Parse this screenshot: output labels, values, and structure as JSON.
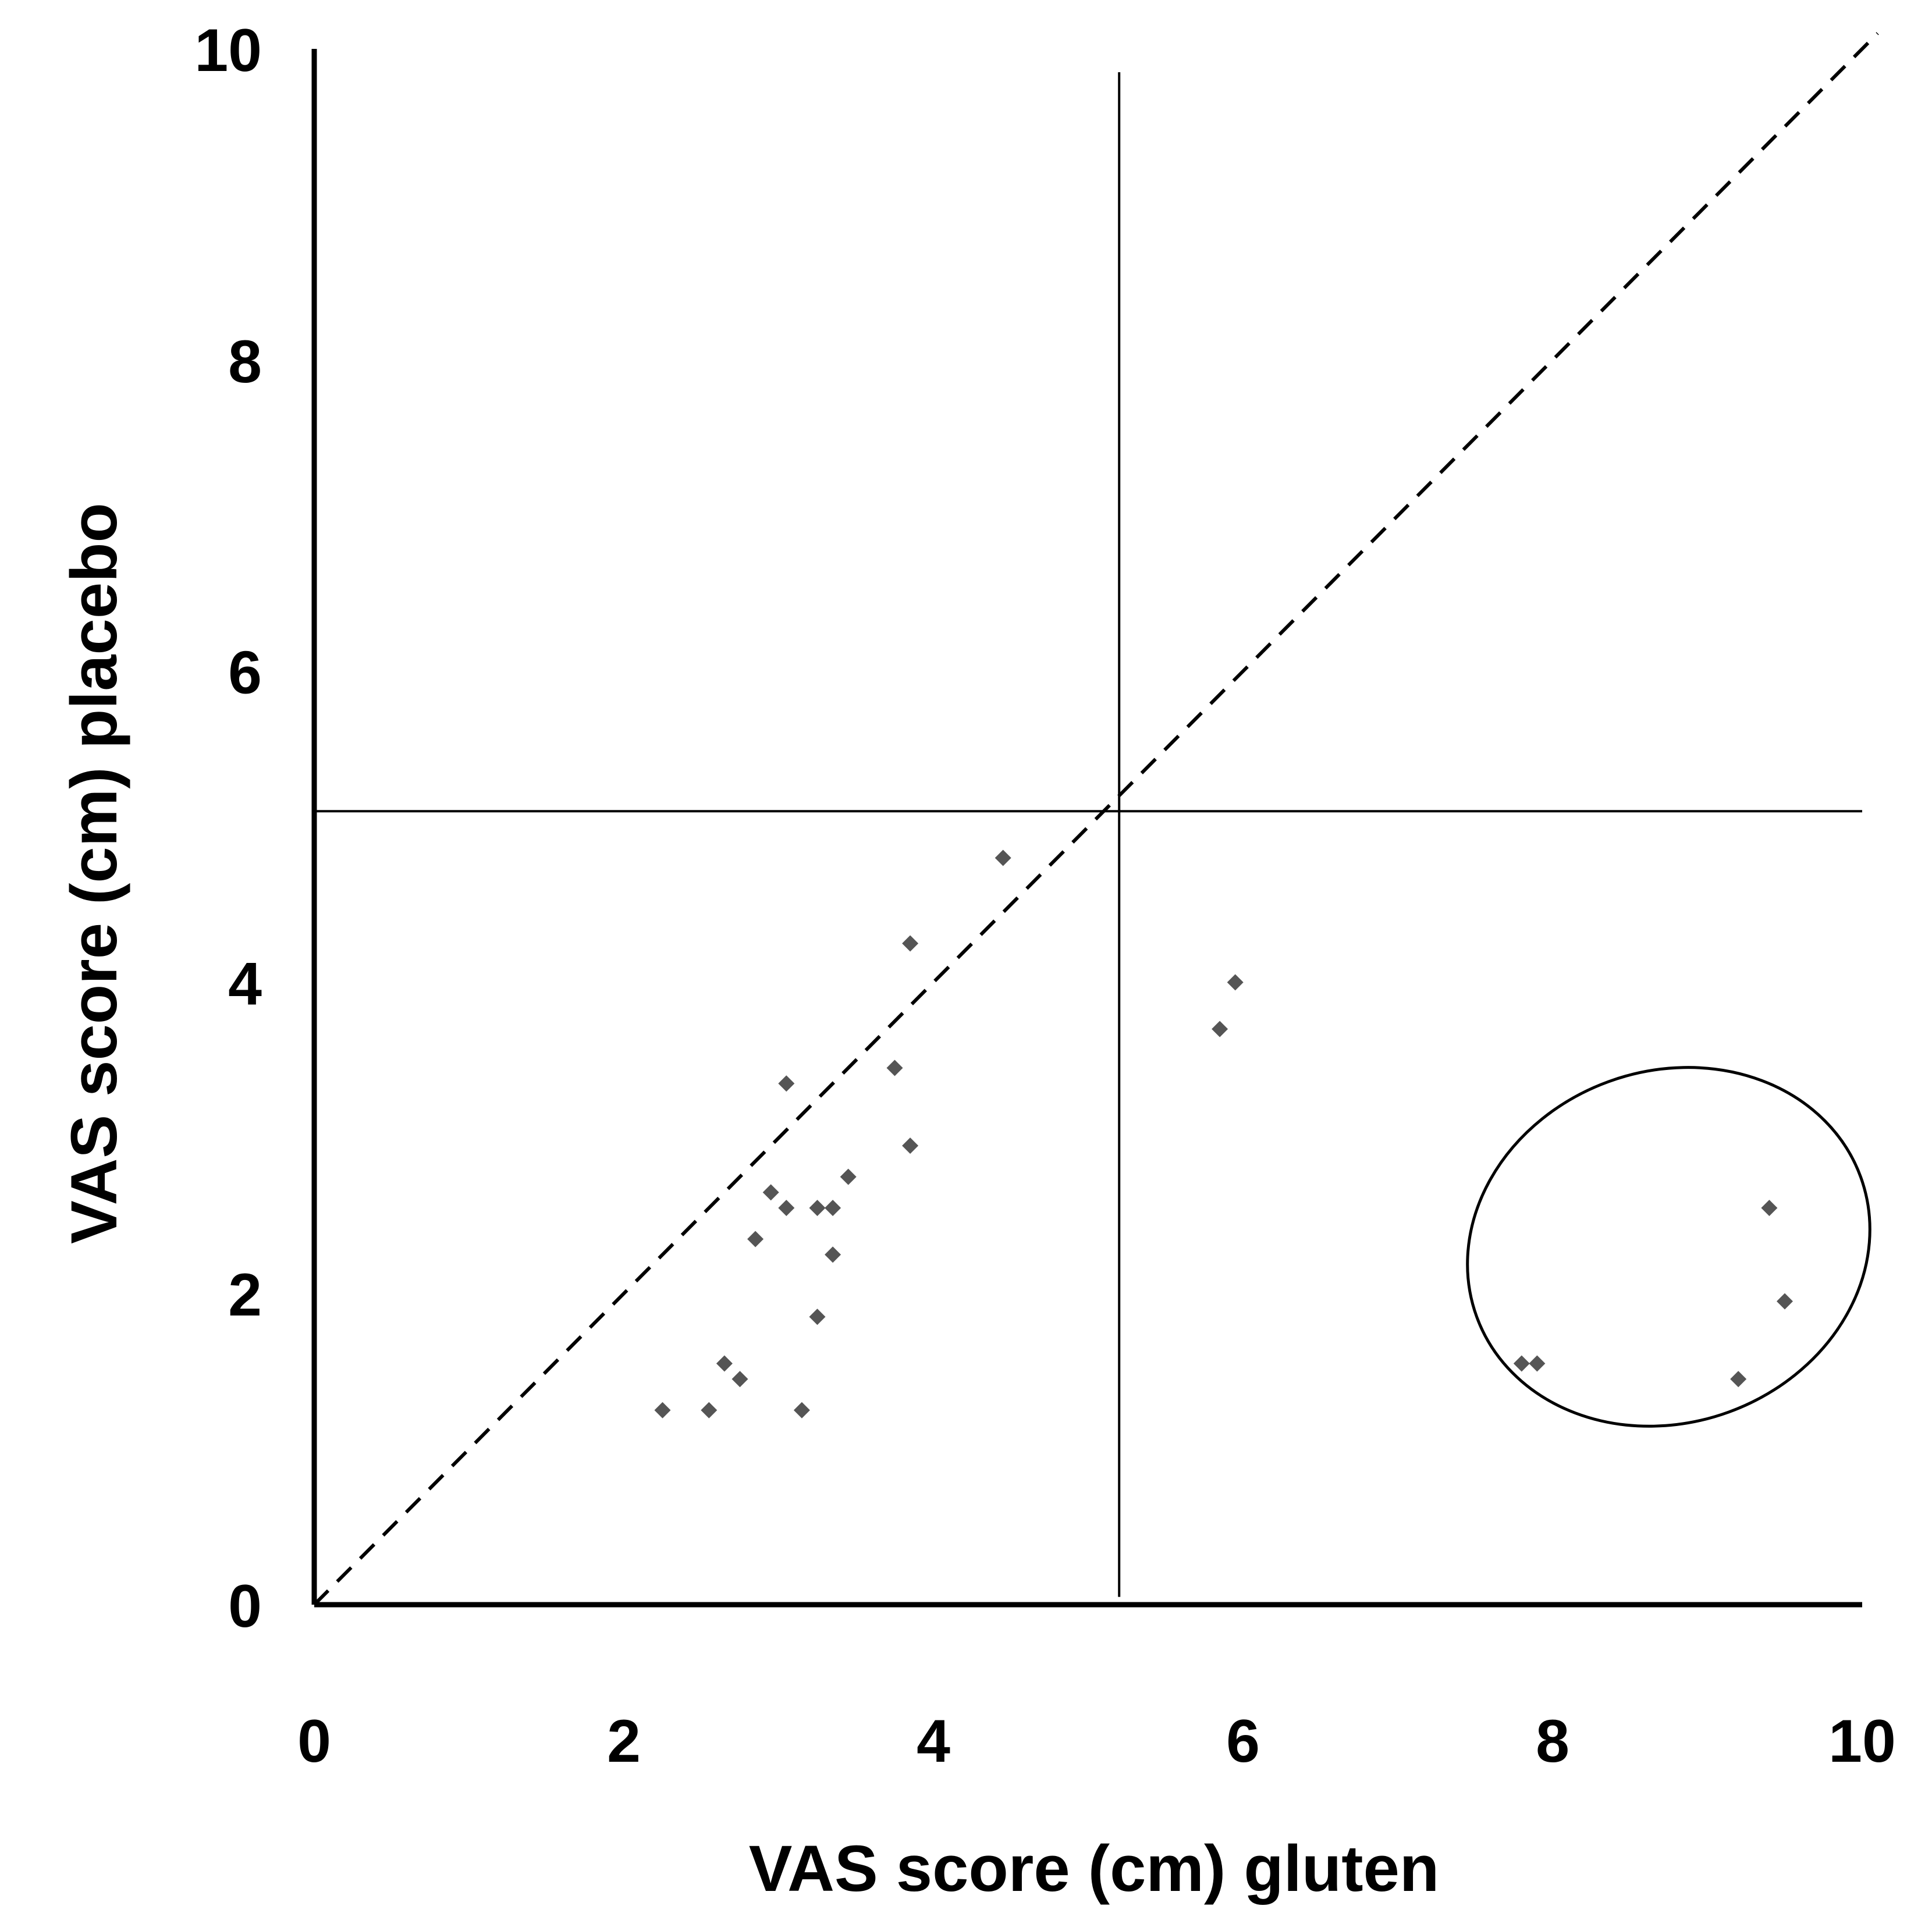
{
  "chart_data": {
    "type": "scatter",
    "title": "",
    "xlabel": "VAS score (cm) gluten",
    "ylabel": "VAS score (cm) placebo",
    "xlim": [
      0,
      10
    ],
    "ylim": [
      0,
      10
    ],
    "x_ticks": [
      "0",
      "2",
      "4",
      "6",
      "8",
      "10"
    ],
    "y_ticks": [
      "0",
      "2",
      "4",
      "6",
      "8",
      "10"
    ],
    "grid": false,
    "series": [
      {
        "name": "patients",
        "marker": "diamond",
        "color": "#555555",
        "points": [
          {
            "x": 2.25,
            "y": 1.25
          },
          {
            "x": 2.55,
            "y": 1.25
          },
          {
            "x": 3.15,
            "y": 1.25
          },
          {
            "x": 2.75,
            "y": 1.45
          },
          {
            "x": 2.65,
            "y": 1.55
          },
          {
            "x": 3.25,
            "y": 1.85
          },
          {
            "x": 2.85,
            "y": 2.35
          },
          {
            "x": 3.35,
            "y": 2.25
          },
          {
            "x": 3.05,
            "y": 2.55
          },
          {
            "x": 3.25,
            "y": 2.55
          },
          {
            "x": 3.35,
            "y": 2.55
          },
          {
            "x": 2.95,
            "y": 2.65
          },
          {
            "x": 3.45,
            "y": 2.75
          },
          {
            "x": 3.85,
            "y": 2.95
          },
          {
            "x": 3.05,
            "y": 3.35
          },
          {
            "x": 3.75,
            "y": 3.45
          },
          {
            "x": 3.85,
            "y": 4.25
          },
          {
            "x": 4.45,
            "y": 4.8
          },
          {
            "x": 5.85,
            "y": 3.7
          },
          {
            "x": 5.95,
            "y": 4.0
          },
          {
            "x": 7.8,
            "y": 1.55
          },
          {
            "x": 7.9,
            "y": 1.55
          },
          {
            "x": 9.2,
            "y": 1.45
          },
          {
            "x": 9.4,
            "y": 2.55
          },
          {
            "x": 9.5,
            "y": 1.95
          }
        ]
      }
    ],
    "reference_lines": [
      {
        "name": "identity",
        "style": "dashed",
        "from": [
          0,
          0
        ],
        "to": [
          10.1,
          10.1
        ]
      },
      {
        "name": "vertical-cutoff",
        "style": "solid",
        "x": 5.2,
        "y_range": [
          0.05,
          9.85
        ]
      },
      {
        "name": "horizontal-cutoff",
        "style": "solid",
        "y": 5.1,
        "x_range": [
          0,
          10
        ]
      }
    ],
    "annotations": [
      {
        "type": "ellipse",
        "center": [
          8.75,
          2.3
        ],
        "radii": [
          1.32,
          1.13
        ],
        "rotation_deg": -20
      }
    ]
  }
}
